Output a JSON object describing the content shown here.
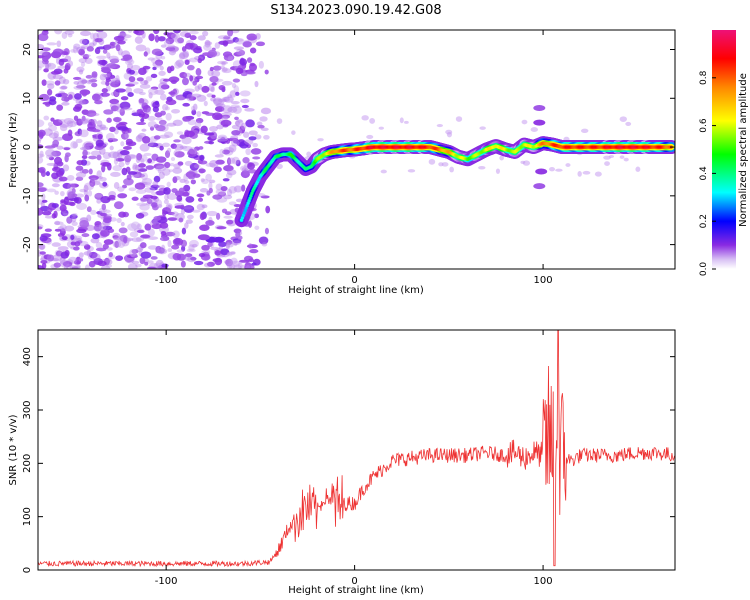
{
  "title": "S134.2023.090.19.42.G08",
  "colors": {
    "snr_line": "#ee3333",
    "colormap": [
      "#d0b0f0",
      "#8a2be2",
      "#0000ff",
      "#00ffff",
      "#00ff00",
      "#ffff00",
      "#ff8800",
      "#ff0000",
      "#ee1177"
    ]
  },
  "chart_data": [
    {
      "type": "heatmap",
      "xlabel": "Height of straight line (km)",
      "ylabel": "Frequency (Hz)",
      "xlim": [
        -168,
        170
      ],
      "ylim": [
        -25,
        24
      ],
      "xticks": [
        -100,
        0,
        100
      ],
      "xtick_labels": [
        "-100",
        "0",
        "100"
      ],
      "yticks": [
        -20,
        -10,
        0,
        10,
        20
      ],
      "ytick_labels": [
        "-20",
        "-10",
        "0",
        "10",
        "20"
      ],
      "grid": false,
      "colorbar": {
        "label": "Normalized spectral amplitude",
        "range": [
          0,
          1
        ],
        "ticks": [
          0.0,
          0.2,
          0.4,
          0.6,
          0.8
        ],
        "tick_labels": [
          "0.0",
          "0.2",
          "0.4",
          "0.6",
          "0.8"
        ]
      },
      "description_points": {
        "x": [
          -60,
          -57,
          -54,
          -50,
          -46,
          -42,
          -38,
          -34,
          -30,
          -26,
          -23,
          -20,
          -16,
          -12,
          -8,
          -4,
          0,
          10,
          20,
          30,
          40,
          50,
          55,
          60,
          65,
          70,
          75,
          80,
          85,
          90,
          95,
          100,
          105,
          110,
          120,
          130,
          140,
          150,
          160,
          168
        ],
        "y": [
          -15,
          -12,
          -9,
          -6,
          -4,
          -2,
          -1.5,
          -1.5,
          -3,
          -4.5,
          -4,
          -2.5,
          -1.5,
          -1,
          -0.8,
          -0.6,
          -0.5,
          0,
          0,
          0,
          0,
          -1,
          -2,
          -2.5,
          -1.5,
          -0.5,
          0.2,
          -0.5,
          -1,
          0.5,
          0,
          0.8,
          0.5,
          0,
          0,
          0,
          0,
          0,
          0,
          0
        ],
        "amplitude": [
          0.3,
          0.35,
          0.35,
          0.35,
          0.4,
          0.4,
          0.4,
          0.45,
          0.4,
          0.35,
          0.45,
          0.5,
          0.6,
          0.7,
          0.8,
          0.8,
          0.8,
          0.9,
          0.9,
          0.9,
          0.85,
          0.7,
          0.6,
          0.55,
          0.55,
          0.6,
          0.65,
          0.6,
          0.55,
          0.6,
          0.6,
          0.75,
          0.8,
          0.85,
          0.85,
          0.85,
          0.9,
          0.9,
          0.85,
          0.8
        ]
      }
    },
    {
      "type": "line",
      "xlabel": "Height of straight line (km)",
      "ylabel": "SNR (10 * v/v)",
      "xlim": [
        -168,
        170
      ],
      "ylim": [
        0,
        450
      ],
      "xticks": [
        -100,
        0,
        100
      ],
      "xtick_labels": [
        "-100",
        "0",
        "100"
      ],
      "yticks": [
        0,
        100,
        200,
        300,
        400
      ],
      "ytick_labels": [
        "0",
        "100",
        "200",
        "300",
        "400"
      ],
      "grid": false,
      "x": [
        -168,
        -150,
        -120,
        -90,
        -60,
        -45,
        -40,
        -35,
        -30,
        -25,
        -20,
        -15,
        -10,
        -5,
        0,
        5,
        10,
        15,
        20,
        30,
        40,
        50,
        60,
        70,
        80,
        85,
        90,
        95,
        100,
        103,
        105,
        107,
        110,
        115,
        120,
        130,
        140,
        150,
        160,
        170
      ],
      "y": [
        12,
        12,
        12,
        12,
        12,
        15,
        40,
        80,
        100,
        120,
        110,
        140,
        120,
        125,
        125,
        155,
        175,
        190,
        205,
        210,
        215,
        215,
        215,
        220,
        215,
        220,
        210,
        220,
        215,
        250,
        230,
        250,
        215,
        205,
        215,
        215,
        215,
        220,
        220,
        215
      ]
    }
  ]
}
